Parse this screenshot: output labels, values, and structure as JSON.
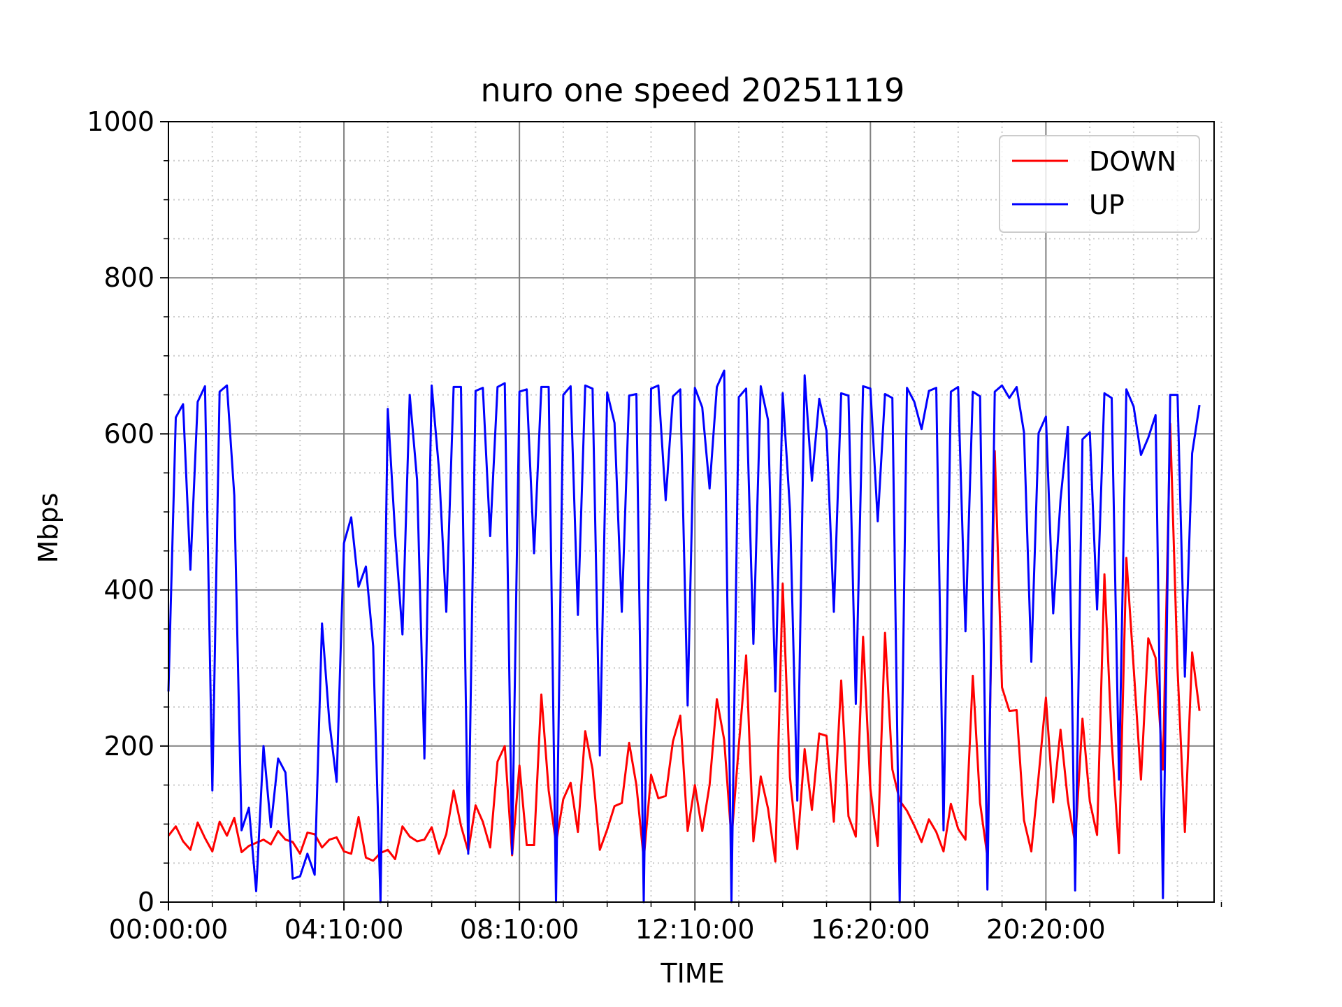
{
  "chart_data": {
    "type": "line",
    "title": "nuro one speed 20251119",
    "xlabel": "TIME",
    "ylabel": "Mbps",
    "ylim": [
      0,
      1000
    ],
    "yticks": [
      0,
      200,
      400,
      600,
      800,
      1000
    ],
    "y_minor_step": 50,
    "x_major_ticks": [
      "00:00:00",
      "04:10:00",
      "08:10:00",
      "12:10:00",
      "16:20:00",
      "20:20:00"
    ],
    "x_major_tick_index": [
      0,
      24,
      48,
      72,
      96,
      120
    ],
    "x_minor_step": 6,
    "x_last_index": 143,
    "grid": true,
    "legend_position": "upper-right",
    "series": [
      {
        "name": "DOWN",
        "color": "#ff0000",
        "values": [
          85,
          97,
          78,
          67,
          102,
          82,
          65,
          103,
          85,
          108,
          64,
          72,
          76,
          80,
          74,
          91,
          80,
          77,
          62,
          89,
          87,
          70,
          80,
          83,
          65,
          62,
          109,
          57,
          53,
          63,
          67,
          55,
          97,
          84,
          78,
          80,
          96,
          62,
          87,
          143,
          98,
          65,
          124,
          103,
          70,
          180,
          200,
          60,
          175,
          73,
          73,
          266,
          143,
          75,
          132,
          153,
          90,
          219,
          170,
          67,
          93,
          123,
          127,
          204,
          150,
          55,
          163,
          133,
          136,
          206,
          239,
          91,
          150,
          91,
          150,
          260,
          208,
          80,
          200,
          316,
          78,
          161,
          120,
          52,
          408,
          160,
          68,
          196,
          118,
          216,
          213,
          103,
          284,
          110,
          84,
          340,
          145,
          72,
          345,
          170,
          130,
          117,
          98,
          77,
          106,
          90,
          65,
          126,
          94,
          80,
          290,
          127,
          58,
          578,
          275,
          245,
          246,
          105,
          65,
          161,
          262,
          128,
          221,
          130,
          75,
          235,
          129,
          86,
          420,
          206,
          63,
          441,
          301,
          157,
          338,
          313,
          170,
          613,
          299,
          90,
          320,
          245
        ]
      },
      {
        "name": "UP",
        "color": "#0000ff",
        "values": [
          270,
          621,
          638,
          426,
          641,
          661,
          143,
          654,
          662,
          521,
          92,
          121,
          14,
          200,
          96,
          184,
          166,
          30,
          33,
          62,
          35,
          357,
          231,
          154,
          460,
          493,
          404,
          430,
          328,
          0,
          632,
          472,
          343,
          650,
          541,
          184,
          662,
          554,
          372,
          660,
          660,
          62,
          655,
          659,
          469,
          660,
          665,
          62,
          654,
          657,
          447,
          660,
          660,
          0,
          650,
          661,
          368,
          662,
          658,
          188,
          653,
          614,
          372,
          649,
          651,
          0,
          658,
          662,
          515,
          648,
          657,
          252,
          659,
          634,
          530,
          660,
          681,
          0,
          647,
          658,
          331,
          661,
          618,
          270,
          652,
          503,
          130,
          675,
          540,
          645,
          604,
          372,
          652,
          649,
          254,
          661,
          658,
          488,
          651,
          646,
          0,
          659,
          641,
          606,
          655,
          659,
          92,
          654,
          660,
          347,
          654,
          648,
          16,
          654,
          662,
          646,
          660,
          602,
          308,
          601,
          622,
          370,
          516,
          609,
          15,
          593,
          602,
          375,
          652,
          646,
          157,
          657,
          635,
          573,
          595,
          624,
          5,
          650,
          650,
          289,
          575,
          637
        ]
      }
    ]
  }
}
